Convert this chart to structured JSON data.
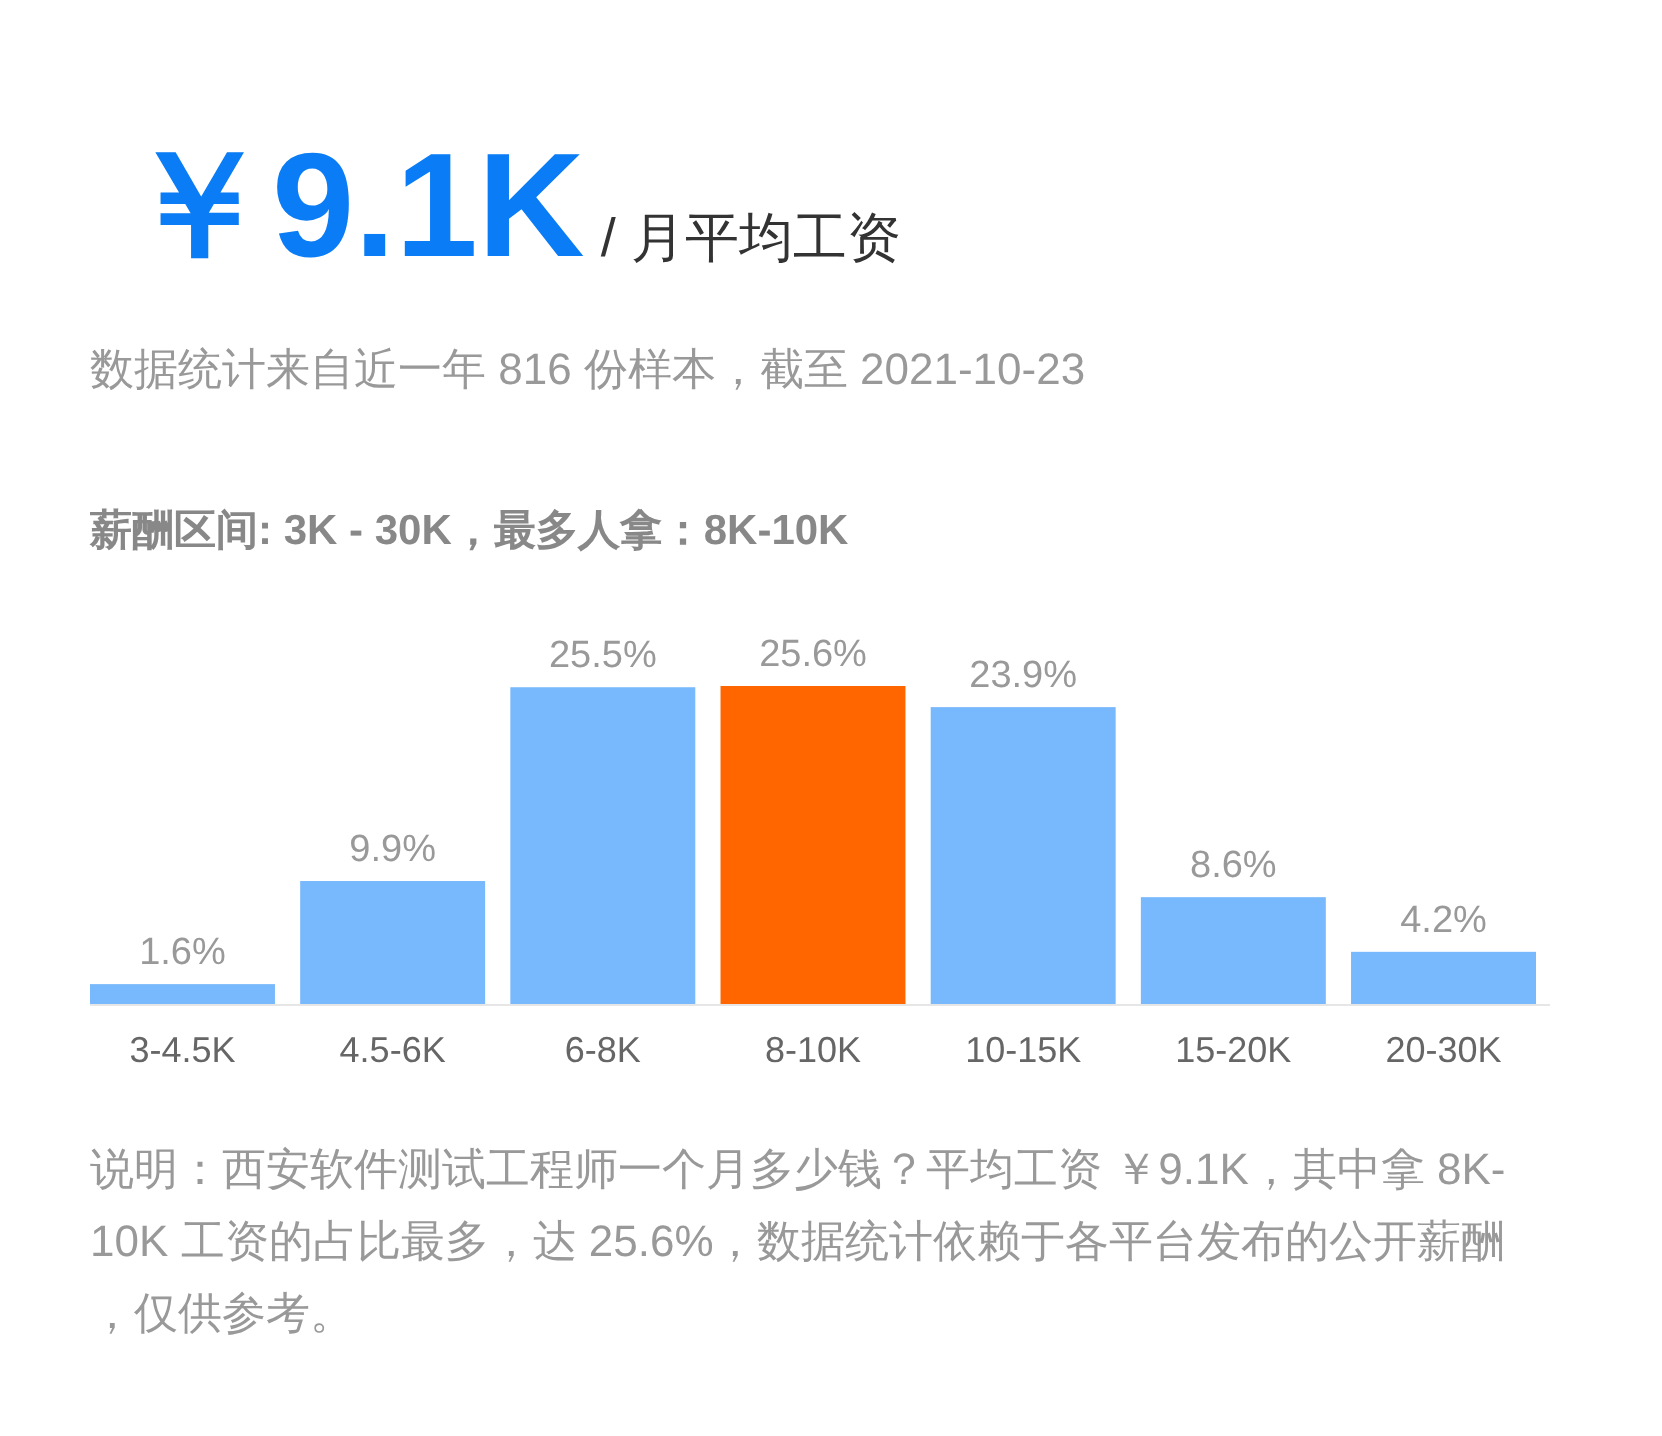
{
  "chart_data": {
    "type": "bar",
    "title": "￥9.1K",
    "subtitle": "/ 月平均工资",
    "annotations": [
      "数据统计来自近一年 816 份样本，截至 2021-10-23",
      "薪酬区间: 3K - 30K，最多人拿：8K-10K",
      "说明：西安软件测试工程师一个月多少钱？平均工资 ￥9.1K，其中拿 8K-10K 工资的占比最多，达 25.6%，数据统计依赖于各平台发布的公开薪酬，仅供参考。"
    ],
    "categories": [
      "3-4.5K",
      "4.5-6K",
      "6-8K",
      "8-10K",
      "10-15K",
      "15-20K",
      "20-30K"
    ],
    "values": [
      1.6,
      9.9,
      25.5,
      25.6,
      23.9,
      8.6,
      4.2
    ],
    "value_labels": [
      "1.6%",
      "9.9%",
      "25.5%",
      "25.6%",
      "23.9%",
      "8.6%",
      "4.2%"
    ],
    "colors": [
      "#78b8fc",
      "#78b8fc",
      "#78b8fc",
      "#ff6600",
      "#78b8fc",
      "#78b8fc",
      "#78b8fc"
    ]
  }
}
